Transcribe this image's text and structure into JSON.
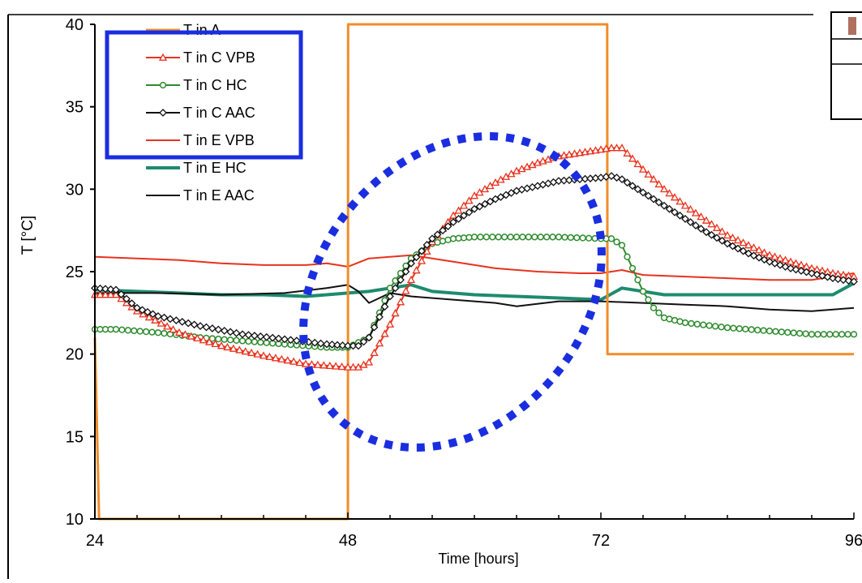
{
  "chart_data": {
    "type": "line",
    "xlabel": "Time [hours]",
    "ylabel": "T [°C]",
    "xlim": [
      24,
      96
    ],
    "ylim": [
      10,
      40
    ],
    "x_ticks": [
      24,
      48,
      72,
      96
    ],
    "x_tick_labels": [
      "24",
      "48",
      "72",
      "96"
    ],
    "x_minor_tick_step": 4,
    "y_ticks": [
      10,
      15,
      20,
      25,
      30,
      35,
      40
    ],
    "y_tick_labels": [
      "10",
      "15",
      "20",
      "25",
      "30",
      "35",
      "40"
    ],
    "grid": false,
    "legend_position": "top-left",
    "series": [
      {
        "name": "T in A",
        "color": "#f28c28",
        "marker": "none",
        "width": 3,
        "points": [
          [
            24,
            21
          ],
          [
            24.4,
            10
          ],
          [
            48,
            10
          ],
          [
            48.02,
            40
          ],
          [
            72.6,
            40
          ],
          [
            72.62,
            20
          ],
          [
            96,
            20
          ]
        ]
      },
      {
        "name": "T in C VPB",
        "color": "#e8321e",
        "marker": "triangle",
        "width": 2,
        "points": [
          [
            24,
            23.6
          ],
          [
            26,
            23.6
          ],
          [
            28,
            22.6
          ],
          [
            32,
            21.3
          ],
          [
            36,
            20.5
          ],
          [
            40,
            19.9
          ],
          [
            44,
            19.4
          ],
          [
            48,
            19.2
          ],
          [
            49,
            19.2
          ],
          [
            50,
            19.5
          ],
          [
            52,
            21.8
          ],
          [
            54,
            24.5
          ],
          [
            56,
            26.8
          ],
          [
            58,
            28.4
          ],
          [
            60,
            29.6
          ],
          [
            62,
            30.4
          ],
          [
            64,
            31.1
          ],
          [
            66,
            31.6
          ],
          [
            68,
            32
          ],
          [
            70,
            32.2
          ],
          [
            72,
            32.4
          ],
          [
            73,
            32.5
          ],
          [
            74,
            32.5
          ],
          [
            76,
            31.2
          ],
          [
            78,
            30
          ],
          [
            80,
            29
          ],
          [
            82,
            28.1
          ],
          [
            84,
            27.2
          ],
          [
            86,
            26.6
          ],
          [
            88,
            26
          ],
          [
            90,
            25.6
          ],
          [
            92,
            25.2
          ],
          [
            94,
            24.9
          ],
          [
            96,
            24.7
          ]
        ]
      },
      {
        "name": "T in C HC",
        "color": "#2e8b2e",
        "marker": "circle",
        "width": 2,
        "points": [
          [
            24,
            21.5
          ],
          [
            26,
            21.5
          ],
          [
            30,
            21.3
          ],
          [
            34,
            21
          ],
          [
            38,
            20.8
          ],
          [
            42,
            20.6
          ],
          [
            46,
            20.4
          ],
          [
            48,
            20.4
          ],
          [
            50,
            21
          ],
          [
            51,
            22.5
          ],
          [
            52,
            24
          ],
          [
            54,
            25.8
          ],
          [
            56,
            26.7
          ],
          [
            58,
            27
          ],
          [
            60,
            27.1
          ],
          [
            64,
            27.1
          ],
          [
            68,
            27.1
          ],
          [
            72,
            27
          ],
          [
            73,
            27
          ],
          [
            74,
            26.6
          ],
          [
            75,
            25.2
          ],
          [
            76,
            23.8
          ],
          [
            77,
            22.8
          ],
          [
            78,
            22.2
          ],
          [
            80,
            21.9
          ],
          [
            84,
            21.6
          ],
          [
            88,
            21.4
          ],
          [
            92,
            21.2
          ],
          [
            96,
            21.2
          ]
        ]
      },
      {
        "name": "T in C AAC",
        "color": "#111111",
        "marker": "diamond",
        "width": 2,
        "points": [
          [
            24,
            24
          ],
          [
            26,
            23.9
          ],
          [
            28,
            22.8
          ],
          [
            30,
            22.3
          ],
          [
            34,
            21.7
          ],
          [
            38,
            21.2
          ],
          [
            42,
            20.9
          ],
          [
            46,
            20.6
          ],
          [
            48,
            20.5
          ],
          [
            49,
            20.5
          ],
          [
            50,
            21
          ],
          [
            52,
            23.5
          ],
          [
            54,
            25.5
          ],
          [
            56,
            27
          ],
          [
            58,
            28
          ],
          [
            60,
            28.8
          ],
          [
            62,
            29.4
          ],
          [
            64,
            29.9
          ],
          [
            66,
            30.2
          ],
          [
            68,
            30.5
          ],
          [
            70,
            30.6
          ],
          [
            72,
            30.7
          ],
          [
            73,
            30.8
          ],
          [
            74,
            30.6
          ],
          [
            76,
            29.8
          ],
          [
            78,
            29
          ],
          [
            80,
            28.2
          ],
          [
            82,
            27.4
          ],
          [
            84,
            26.7
          ],
          [
            86,
            26.1
          ],
          [
            88,
            25.6
          ],
          [
            90,
            25.2
          ],
          [
            92,
            24.9
          ],
          [
            94,
            24.6
          ],
          [
            96,
            24.4
          ]
        ]
      },
      {
        "name": "T in E VPB",
        "color": "#e8321e",
        "marker": "none",
        "width": 2,
        "points": [
          [
            24,
            25.9
          ],
          [
            28,
            25.8
          ],
          [
            32,
            25.7
          ],
          [
            36,
            25.5
          ],
          [
            40,
            25.4
          ],
          [
            44,
            25.4
          ],
          [
            46,
            25.5
          ],
          [
            48,
            25.3
          ],
          [
            50,
            25.8
          ],
          [
            54,
            26
          ],
          [
            58,
            25.6
          ],
          [
            62,
            25.2
          ],
          [
            66,
            25
          ],
          [
            70,
            24.9
          ],
          [
            72,
            24.9
          ],
          [
            74,
            25.1
          ],
          [
            76,
            24.8
          ],
          [
            80,
            24.7
          ],
          [
            84,
            24.6
          ],
          [
            88,
            24.5
          ],
          [
            92,
            24.5
          ],
          [
            96,
            24.9
          ]
        ]
      },
      {
        "name": "T in E HC",
        "color": "#1e8b6e",
        "marker": "none",
        "width": 4,
        "points": [
          [
            24,
            23.9
          ],
          [
            28,
            23.8
          ],
          [
            32,
            23.7
          ],
          [
            36,
            23.6
          ],
          [
            40,
            23.6
          ],
          [
            44,
            23.5
          ],
          [
            46,
            23.6
          ],
          [
            48,
            23.7
          ],
          [
            50,
            23.8
          ],
          [
            52,
            24
          ],
          [
            54,
            24.2
          ],
          [
            56,
            23.8
          ],
          [
            60,
            23.6
          ],
          [
            64,
            23.5
          ],
          [
            68,
            23.4
          ],
          [
            72,
            23.3
          ],
          [
            74,
            24
          ],
          [
            76,
            23.8
          ],
          [
            78,
            23.6
          ],
          [
            84,
            23.6
          ],
          [
            90,
            23.6
          ],
          [
            94,
            23.6
          ],
          [
            96,
            24.3
          ]
        ]
      },
      {
        "name": "T in E AAC",
        "color": "#111111",
        "marker": "none",
        "width": 2,
        "points": [
          [
            24,
            23.7
          ],
          [
            30,
            23.7
          ],
          [
            36,
            23.6
          ],
          [
            42,
            23.7
          ],
          [
            46,
            24
          ],
          [
            48,
            24.2
          ],
          [
            49,
            23.8
          ],
          [
            50,
            23.1
          ],
          [
            51,
            23.4
          ],
          [
            52,
            23.7
          ],
          [
            54,
            23.5
          ],
          [
            58,
            23.3
          ],
          [
            62,
            23.1
          ],
          [
            64,
            22.9
          ],
          [
            68,
            23.2
          ],
          [
            72,
            23.2
          ],
          [
            76,
            23.1
          ],
          [
            80,
            23
          ],
          [
            84,
            22.9
          ],
          [
            88,
            22.7
          ],
          [
            92,
            22.6
          ],
          [
            96,
            22.8
          ]
        ]
      }
    ]
  }
}
